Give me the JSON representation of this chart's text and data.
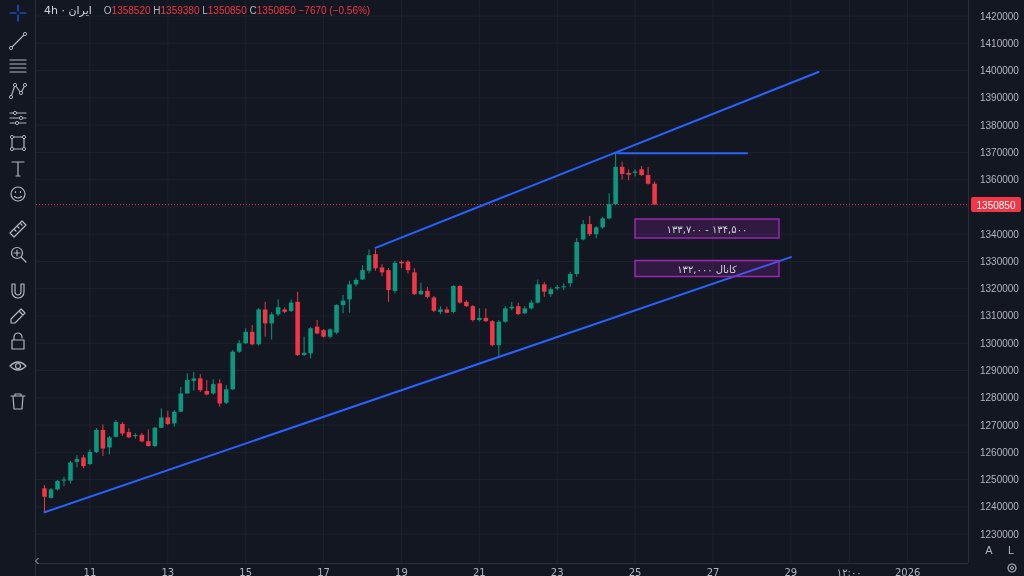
{
  "chart_data": {
    "type": "candlestick",
    "title": "4h · ایران",
    "subtitle": "O1358520 H1359380 L1350850 C1350850 −7670 (−0.56%)",
    "x": [
      "2025-12-09T20:00",
      "2025-12-10T00:00",
      "2025-12-10T04:00",
      "2025-12-10T08:00",
      "2025-12-10T12:00",
      "2025-12-10T16:00",
      "2025-12-10T20:00",
      "2025-12-11T00:00",
      "2025-12-11T04:00",
      "2025-12-11T08:00",
      "2025-12-11T12:00",
      "2025-12-11T16:00",
      "2025-12-11T20:00",
      "2025-12-12T00:00",
      "2025-12-12T04:00",
      "2025-12-12T08:00",
      "2025-12-12T12:00",
      "2025-12-12T16:00",
      "2025-12-12T20:00",
      "2025-12-13T00:00",
      "2025-12-13T04:00",
      "2025-12-13T08:00",
      "2025-12-13T12:00",
      "2025-12-13T16:00",
      "2025-12-13T20:00",
      "2025-12-14T00:00",
      "2025-12-14T04:00",
      "2025-12-14T08:00",
      "2025-12-14T12:00",
      "2025-12-14T16:00",
      "2025-12-14T20:00",
      "2025-12-15T00:00",
      "2025-12-15T04:00",
      "2025-12-15T08:00",
      "2025-12-15T12:00",
      "2025-12-15T16:00",
      "2025-12-15T20:00",
      "2025-12-16T00:00",
      "2025-12-16T04:00",
      "2025-12-16T08:00",
      "2025-12-16T12:00",
      "2025-12-16T16:00",
      "2025-12-16T20:00",
      "2025-12-17T00:00",
      "2025-12-17T04:00",
      "2025-12-17T08:00",
      "2025-12-17T12:00",
      "2025-12-17T16:00",
      "2025-12-17T20:00",
      "2025-12-18T00:00",
      "2025-12-18T04:00",
      "2025-12-18T08:00",
      "2025-12-18T12:00",
      "2025-12-18T16:00",
      "2025-12-18T20:00",
      "2025-12-19T00:00",
      "2025-12-19T04:00",
      "2025-12-19T08:00",
      "2025-12-19T12:00",
      "2025-12-19T16:00",
      "2025-12-19T20:00",
      "2025-12-20T00:00",
      "2025-12-20T04:00",
      "2025-12-20T08:00",
      "2025-12-20T12:00",
      "2025-12-20T16:00",
      "2025-12-20T20:00",
      "2025-12-21T00:00",
      "2025-12-21T04:00",
      "2025-12-21T08:00",
      "2025-12-21T12:00",
      "2025-12-21T16:00",
      "2025-12-21T20:00",
      "2025-12-22T00:00",
      "2025-12-22T04:00",
      "2025-12-22T08:00",
      "2025-12-22T12:00",
      "2025-12-22T16:00",
      "2025-12-22T20:00",
      "2025-12-23T00:00",
      "2025-12-23T04:00",
      "2025-12-23T08:00",
      "2025-12-23T12:00",
      "2025-12-23T16:00",
      "2025-12-23T20:00",
      "2025-12-24T00:00",
      "2025-12-24T04:00",
      "2025-12-24T08:00",
      "2025-12-24T12:00",
      "2025-12-24T16:00",
      "2025-12-24T20:00",
      "2025-12-25T00:00",
      "2025-12-25T04:00",
      "2025-12-25T08:00",
      "2025-12-25T12:00"
    ],
    "ohlc": [
      [
        1246800,
        1248000,
        1238200,
        1243700
      ],
      [
        1243300,
        1246900,
        1243000,
        1246400
      ],
      [
        1246400,
        1249800,
        1246000,
        1249500
      ],
      [
        1249600,
        1251000,
        1247600,
        1250000
      ],
      [
        1249600,
        1256800,
        1248600,
        1256300
      ],
      [
        1256500,
        1259000,
        1254500,
        1257500
      ],
      [
        1258100,
        1259000,
        1254100,
        1254900
      ],
      [
        1255700,
        1261100,
        1255300,
        1260100
      ],
      [
        1260100,
        1268900,
        1259700,
        1268200
      ],
      [
        1268200,
        1270200,
        1258700,
        1261400
      ],
      [
        1261800,
        1266000,
        1259200,
        1265500
      ],
      [
        1265700,
        1271800,
        1265400,
        1271100
      ],
      [
        1270400,
        1271100,
        1266000,
        1266900
      ],
      [
        1267400,
        1268800,
        1265200,
        1265500
      ],
      [
        1266200,
        1267000,
        1265000,
        1266300
      ],
      [
        1266400,
        1267100,
        1263700,
        1264000
      ],
      [
        1264100,
        1268400,
        1262100,
        1262300
      ],
      [
        1262300,
        1269300,
        1261900,
        1269000
      ],
      [
        1269000,
        1276100,
        1268900,
        1272800
      ],
      [
        1272800,
        1275200,
        1270000,
        1270400
      ],
      [
        1270600,
        1275500,
        1269400,
        1274900
      ],
      [
        1274900,
        1284000,
        1274800,
        1281600
      ],
      [
        1281600,
        1289000,
        1281400,
        1286500
      ],
      [
        1286200,
        1289500,
        1282600,
        1287100
      ],
      [
        1287100,
        1288700,
        1282100,
        1282800
      ],
      [
        1282500,
        1286500,
        1280900,
        1281200
      ],
      [
        1281600,
        1286800,
        1281200,
        1285000
      ],
      [
        1285300,
        1286800,
        1276700,
        1277900
      ],
      [
        1278200,
        1284600,
        1277700,
        1283100
      ],
      [
        1283100,
        1297500,
        1282800,
        1296900
      ],
      [
        1296900,
        1301200,
        1296500,
        1300000
      ],
      [
        1300000,
        1305500,
        1299700,
        1304200
      ],
      [
        1304200,
        1306700,
        1299200,
        1299600
      ],
      [
        1299600,
        1312900,
        1299200,
        1312400
      ],
      [
        1312400,
        1315200,
        1302400,
        1307300
      ],
      [
        1307300,
        1311400,
        1301400,
        1310600
      ],
      [
        1310600,
        1316100,
        1310000,
        1313200
      ],
      [
        1312400,
        1313200,
        1311000,
        1311500
      ],
      [
        1311800,
        1316100,
        1311500,
        1314900
      ],
      [
        1315200,
        1318900,
        1295300,
        1295700
      ],
      [
        1295700,
        1302400,
        1295300,
        1296500
      ],
      [
        1296300,
        1305900,
        1294500,
        1305500
      ],
      [
        1306100,
        1308500,
        1303300,
        1303600
      ],
      [
        1304800,
        1305200,
        1302100,
        1302400
      ],
      [
        1302400,
        1305500,
        1301800,
        1305100
      ],
      [
        1303900,
        1314300,
        1303300,
        1314000
      ],
      [
        1314000,
        1317700,
        1311000,
        1315600
      ],
      [
        1316100,
        1322900,
        1311200,
        1321600
      ],
      [
        1321600,
        1324000,
        1320800,
        1323200
      ],
      [
        1323400,
        1328700,
        1323200,
        1326800
      ],
      [
        1326600,
        1334400,
        1325600,
        1332300
      ],
      [
        1332700,
        1334400,
        1326600,
        1327500
      ],
      [
        1327800,
        1329000,
        1324600,
        1326000
      ],
      [
        1326800,
        1327600,
        1315200,
        1319500
      ],
      [
        1319200,
        1330300,
        1318300,
        1329500
      ],
      [
        1329900,
        1330500,
        1327500,
        1329300
      ],
      [
        1329900,
        1330500,
        1325600,
        1326800
      ],
      [
        1326000,
        1327500,
        1317700,
        1318000
      ],
      [
        1318000,
        1322200,
        1317700,
        1319200
      ],
      [
        1319200,
        1320700,
        1316500,
        1317000
      ],
      [
        1316800,
        1317300,
        1311400,
        1311900
      ],
      [
        1311500,
        1313600,
        1310700,
        1312400
      ],
      [
        1312400,
        1313400,
        1311000,
        1311200
      ],
      [
        1311500,
        1321300,
        1311000,
        1321000
      ],
      [
        1321000,
        1321300,
        1314600,
        1314900
      ],
      [
        1315200,
        1315800,
        1313300,
        1313600
      ],
      [
        1313600,
        1314000,
        1307900,
        1308500
      ],
      [
        1308500,
        1312800,
        1308000,
        1309300
      ],
      [
        1309300,
        1312800,
        1307800,
        1308100
      ],
      [
        1308100,
        1308500,
        1298900,
        1299300
      ],
      [
        1299300,
        1308500,
        1295300,
        1307900
      ],
      [
        1307900,
        1313600,
        1307500,
        1312800
      ],
      [
        1312800,
        1315200,
        1312100,
        1313400
      ],
      [
        1313600,
        1314900,
        1310400,
        1310700
      ],
      [
        1311000,
        1313600,
        1310700,
        1312800
      ],
      [
        1312800,
        1315800,
        1312400,
        1314900
      ],
      [
        1314900,
        1323400,
        1314600,
        1321600
      ],
      [
        1321600,
        1322500,
        1317000,
        1318900
      ],
      [
        1318000,
        1320500,
        1317000,
        1319800
      ],
      [
        1320100,
        1321300,
        1319500,
        1320600
      ],
      [
        1320600,
        1321900,
        1319500,
        1320900
      ],
      [
        1322000,
        1326200,
        1320700,
        1325400
      ],
      [
        1325400,
        1338600,
        1324400,
        1337100
      ],
      [
        1338100,
        1345200,
        1337700,
        1343700
      ],
      [
        1343700,
        1346700,
        1339300,
        1340000
      ],
      [
        1340000,
        1343000,
        1338500,
        1342500
      ],
      [
        1342500,
        1346400,
        1342000,
        1345800
      ],
      [
        1345800,
        1355000,
        1345400,
        1351000
      ],
      [
        1351000,
        1369700,
        1350600,
        1364700
      ],
      [
        1364700,
        1366600,
        1360100,
        1362100
      ],
      [
        1362500,
        1363800,
        1359800,
        1361800
      ],
      [
        1362500,
        1363800,
        1361200,
        1363000
      ],
      [
        1363800,
        1365000,
        1361300,
        1361700
      ],
      [
        1361700,
        1364700,
        1358200,
        1358520
      ],
      [
        1358520,
        1359380,
        1350850,
        1350850
      ]
    ],
    "series": [
      {
        "type": "line",
        "color": "#2962ff",
        "x": [
          "2025-12-09T20:00",
          "2025-12-29T00:00"
        ],
        "values": [
          1238000,
          1331600
        ]
      },
      {
        "type": "line",
        "color": "#2962ff",
        "x": [
          "2025-12-18T08:00",
          "2025-12-29T17:00"
        ],
        "values": [
          1335000,
          1399500
        ]
      },
      {
        "type": "line",
        "color": "#2962ff",
        "x": [
          "2025-12-24T13:00",
          "2025-12-27T21:00"
        ],
        "values": [
          1369700,
          1369700
        ]
      }
    ],
    "xlim": [
      "2025-12-09T14:45",
      "2026-01-02T13:10"
    ],
    "xticks": [
      {
        "value": "2025-12-11",
        "label": "11"
      },
      {
        "value": "2025-12-13",
        "label": "13"
      },
      {
        "value": "2025-12-15",
        "label": "15"
      },
      {
        "value": "2025-12-17",
        "label": "17"
      },
      {
        "value": "2025-12-19",
        "label": "19"
      },
      {
        "value": "2025-12-21",
        "label": "21"
      },
      {
        "value": "2025-12-23",
        "label": "23"
      },
      {
        "value": "2025-12-25",
        "label": "25"
      },
      {
        "value": "2025-12-27",
        "label": "27"
      },
      {
        "value": "2025-12-29",
        "label": "29"
      },
      {
        "value": "2025-12-30T12:00",
        "label": "۱۲:۰۰"
      },
      {
        "value": "2026-01-01",
        "label": "2026"
      }
    ],
    "ylim": [
      1219400,
      1425900
    ],
    "yticks": [
      1230000,
      1240000,
      1250000,
      1260000,
      1270000,
      1280000,
      1290000,
      1300000,
      1310000,
      1320000,
      1330000,
      1340000,
      {
        "value": 1350000,
        "label": null
      },
      1360000,
      1370000,
      1380000,
      1390000,
      1400000,
      1410000,
      1420000
    ],
    "grid": true,
    "ref_lines": [
      {
        "axis": "y",
        "value": 1350850,
        "label": "1350850",
        "color": "#f23645",
        "line_style": "dotted"
      }
    ],
    "annotations": [
      "۱۳۳,۷۰۰ - ۱۳۴,۵۰۰",
      "کانال ۱۳۲,۰۰۰",
      "A",
      "L"
    ]
  }
}
